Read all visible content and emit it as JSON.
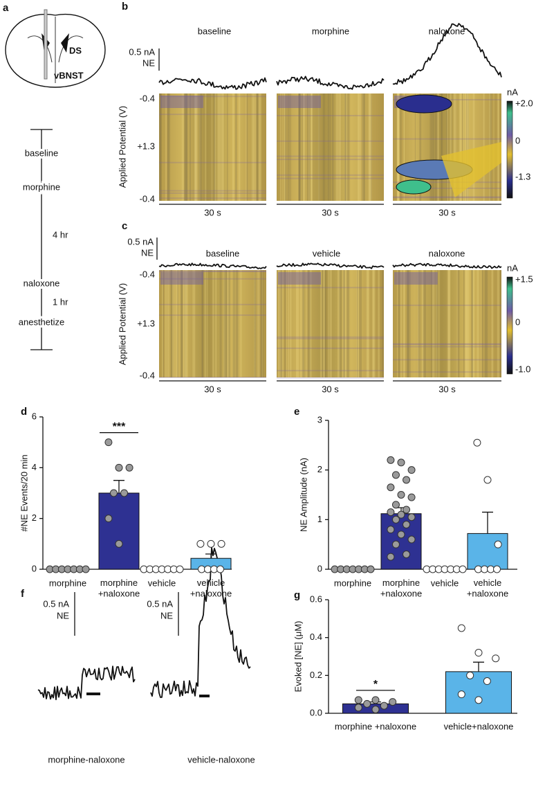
{
  "panel_a": {
    "label": "a",
    "regions": [
      "DS",
      "vBNST"
    ],
    "timeline": [
      "baseline",
      "morphine",
      "4 hr",
      "naloxone",
      "1 hr",
      "anesthetize"
    ]
  },
  "panel_b": {
    "label": "b",
    "conditions": [
      "baseline",
      "morphine",
      "naloxone"
    ],
    "scale": [
      "0.5 nA",
      "NE"
    ],
    "y_label": "Applied Potential (V)",
    "y_ticks": [
      "-0.4",
      "+1.3",
      "-0.4"
    ],
    "time_scale": "30 s",
    "colorbar": {
      "unit": "nA",
      "ticks": [
        "+2.0",
        "0",
        "-1.3"
      ]
    }
  },
  "panel_c": {
    "label": "c",
    "conditions": [
      "baseline",
      "vehicle",
      "naloxone"
    ],
    "scale": [
      "0.5 nA",
      "NE"
    ],
    "y_label": "Applied Potential (V)",
    "y_ticks": [
      "-0.4",
      "+1.3",
      "-0.4"
    ],
    "time_scale": "30 s",
    "colorbar": {
      "unit": "nA",
      "ticks": [
        "+1.5",
        "0",
        "-1.0"
      ]
    }
  },
  "panel_f": {
    "label": "f",
    "scale": [
      "0.5 nA",
      "NE"
    ],
    "traces": [
      "morphine-naloxone",
      "vehicle-naloxone"
    ]
  },
  "chart_data": [
    {
      "type": "bar",
      "panel": "d",
      "y_label": "#NE Events/20 min",
      "categories": [
        "morphine",
        "morphine\n+naloxone",
        "vehicle",
        "vehicle\n+naloxone"
      ],
      "values": [
        0,
        3.0,
        0,
        0.43
      ],
      "errors": [
        0,
        0.5,
        0,
        0.17
      ],
      "points": [
        [
          0,
          0,
          0,
          0,
          0,
          0,
          0
        ],
        [
          5,
          4,
          4,
          3,
          3,
          2,
          1
        ],
        [
          0,
          0,
          0,
          0,
          0,
          0,
          0
        ],
        [
          1,
          1,
          1,
          0,
          0,
          0,
          0
        ]
      ],
      "bar_colors": [
        "#ffffff",
        "#2e3192",
        "#ffffff",
        "#5ab4e8"
      ],
      "point_colors": [
        "#9a9a9a",
        "#9a9a9a",
        "#ffffff",
        "#ffffff"
      ],
      "significance": [
        null,
        "***",
        null,
        null
      ],
      "ylim": [
        0,
        6
      ],
      "yticks": [
        0,
        2,
        4,
        6
      ]
    },
    {
      "type": "bar",
      "panel": "e",
      "y_label": "NE Amplitude (nA)",
      "categories": [
        "morphine",
        "morphine\n+naloxone",
        "vehicle",
        "vehicle\n+naloxone"
      ],
      "values": [
        0,
        1.12,
        0,
        0.72
      ],
      "errors": [
        0,
        0.12,
        0,
        0.43
      ],
      "points": [
        [
          0,
          0,
          0,
          0,
          0,
          0,
          0
        ],
        [
          2.2,
          2.15,
          2.0,
          1.9,
          1.8,
          1.65,
          1.5,
          1.45,
          1.3,
          1.2,
          1.15,
          1.1,
          1.05,
          1.0,
          0.9,
          0.8,
          0.7,
          0.6,
          0.5,
          0.3,
          0.25
        ],
        [
          0,
          0,
          0,
          0,
          0,
          0,
          0
        ],
        [
          2.55,
          1.8,
          0.5,
          0,
          0,
          0,
          0
        ]
      ],
      "bar_colors": [
        "#ffffff",
        "#2e3192",
        "#ffffff",
        "#5ab4e8"
      ],
      "point_colors": [
        "#9a9a9a",
        "#9a9a9a",
        "#ffffff",
        "#ffffff"
      ],
      "significance": [
        null,
        null,
        null,
        null
      ],
      "ylim": [
        0,
        3
      ],
      "yticks": [
        0,
        1,
        2,
        3
      ]
    },
    {
      "type": "bar",
      "panel": "g",
      "y_label": "Evoked [NE] (μM)",
      "categories": [
        "morphine +naloxone",
        "vehicle+naloxone"
      ],
      "values": [
        0.05,
        0.22
      ],
      "errors": [
        0.01,
        0.05
      ],
      "points": [
        [
          0.07,
          0.07,
          0.06,
          0.05,
          0.04,
          0.03,
          0.02
        ],
        [
          0.45,
          0.32,
          0.29,
          0.2,
          0.17,
          0.1,
          0.07
        ]
      ],
      "bar_colors": [
        "#2e3192",
        "#5ab4e8"
      ],
      "point_colors": [
        "#9a9a9a",
        "#ffffff"
      ],
      "significance": [
        "*",
        null
      ],
      "ylim": [
        0,
        0.6
      ],
      "yticks": [
        {
          "value": 0,
          "label": "0.0"
        },
        0.2,
        0.4,
        0.6
      ]
    }
  ]
}
